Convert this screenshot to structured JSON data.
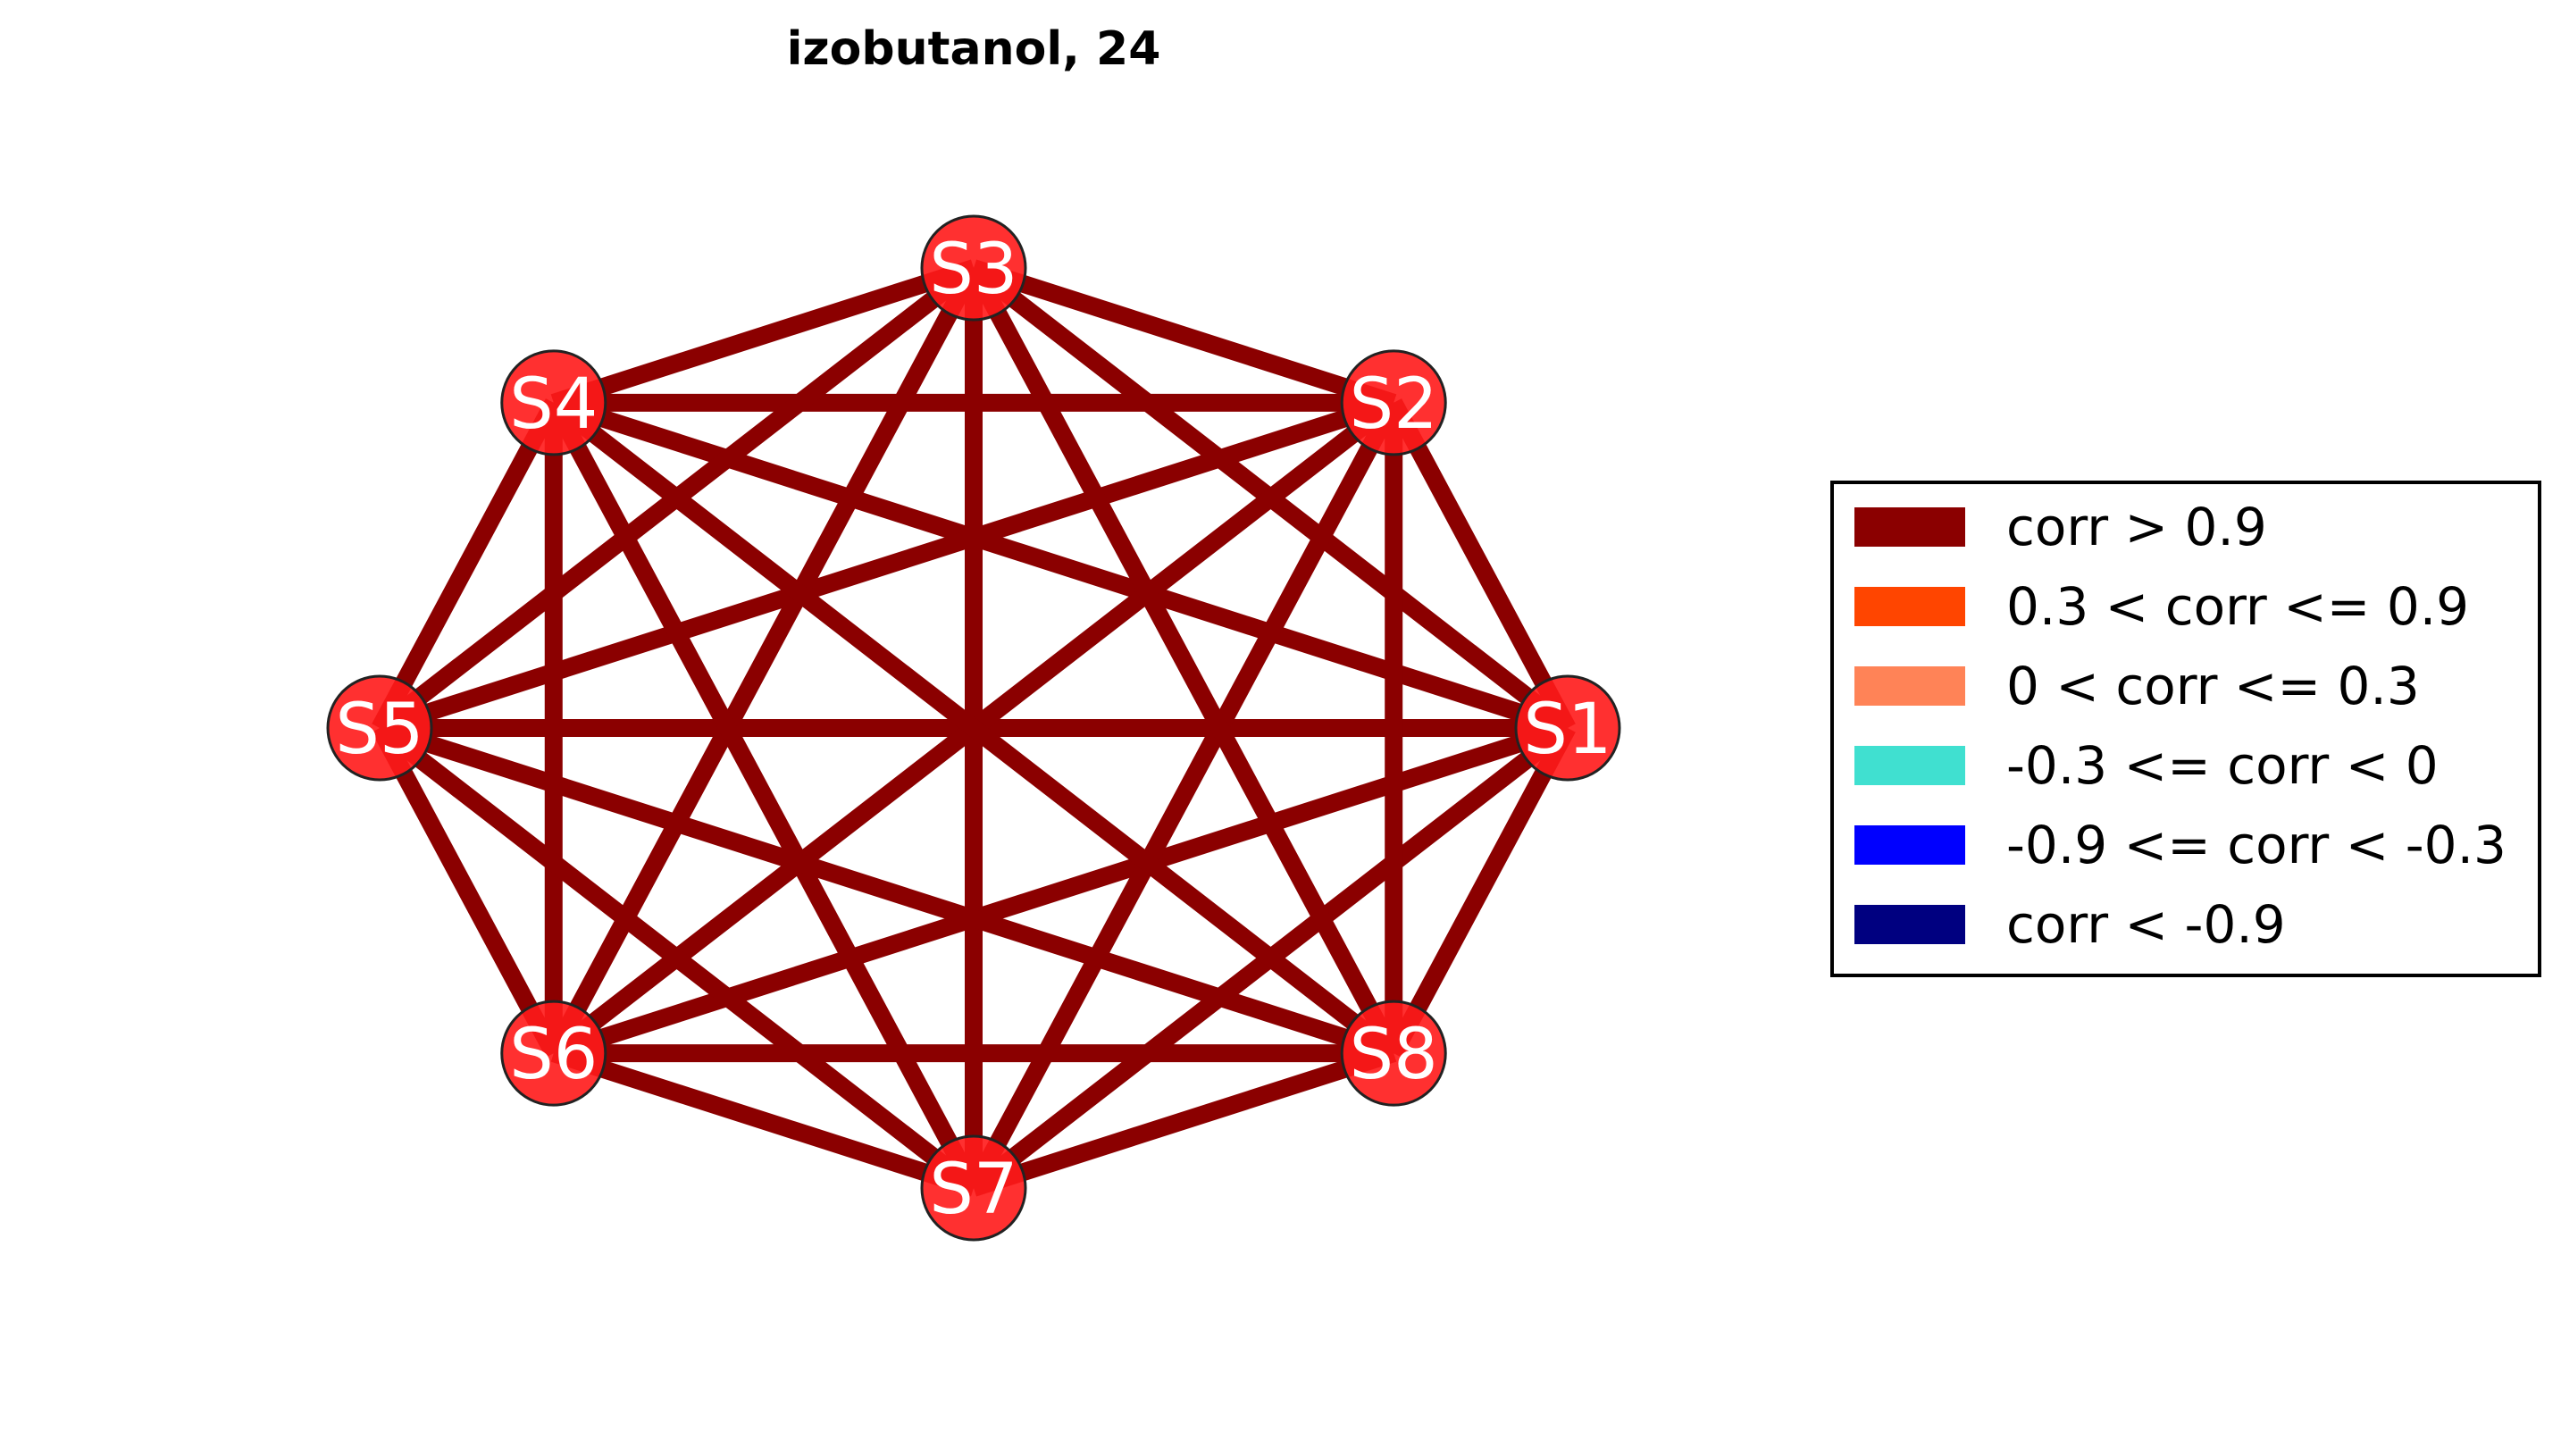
{
  "title": "izobutanol, 24",
  "graph": {
    "nodes": [
      "S1",
      "S2",
      "S3",
      "S4",
      "S5",
      "S6",
      "S7",
      "S8"
    ],
    "node_color": "#ff1a1a",
    "node_border_color": "#222222",
    "edge_class": "corr > 0.9",
    "edge_color": "#8b0000",
    "edges": [
      [
        "S1",
        "S2"
      ],
      [
        "S1",
        "S3"
      ],
      [
        "S1",
        "S4"
      ],
      [
        "S1",
        "S5"
      ],
      [
        "S1",
        "S6"
      ],
      [
        "S1",
        "S7"
      ],
      [
        "S1",
        "S8"
      ],
      [
        "S2",
        "S3"
      ],
      [
        "S2",
        "S4"
      ],
      [
        "S2",
        "S5"
      ],
      [
        "S2",
        "S6"
      ],
      [
        "S2",
        "S7"
      ],
      [
        "S2",
        "S8"
      ],
      [
        "S3",
        "S4"
      ],
      [
        "S3",
        "S5"
      ],
      [
        "S3",
        "S6"
      ],
      [
        "S3",
        "S7"
      ],
      [
        "S3",
        "S8"
      ],
      [
        "S4",
        "S5"
      ],
      [
        "S4",
        "S6"
      ],
      [
        "S4",
        "S7"
      ],
      [
        "S4",
        "S8"
      ],
      [
        "S5",
        "S6"
      ],
      [
        "S5",
        "S7"
      ],
      [
        "S5",
        "S8"
      ],
      [
        "S6",
        "S7"
      ],
      [
        "S6",
        "S8"
      ],
      [
        "S7",
        "S8"
      ]
    ]
  },
  "legend": {
    "placement": "right",
    "entries": [
      {
        "label": "corr > 0.9",
        "color": "#8b0000"
      },
      {
        "label": "0.3 < corr <= 0.9",
        "color": "#ff4500"
      },
      {
        "label": "0 < corr <= 0.3",
        "color": "#ff8357"
      },
      {
        "label": "-0.3 <= corr < 0",
        "color": "#40e0d0"
      },
      {
        "label": "-0.9 <= corr < -0.3",
        "color": "#0000ff"
      },
      {
        "label": "corr < -0.9",
        "color": "#000080"
      }
    ]
  }
}
